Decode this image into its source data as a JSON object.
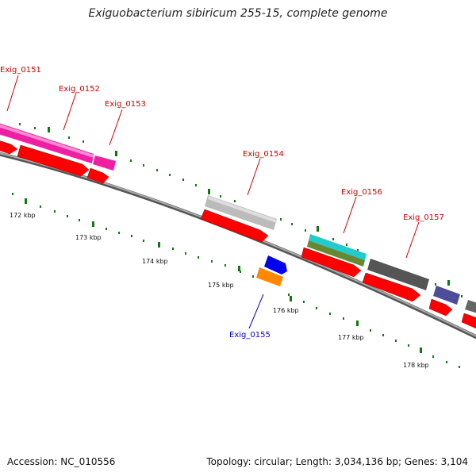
{
  "title": "Exiguobacterium sibiricum 255-15, complete genome",
  "footer": {
    "accession": "Accession: NC_010556",
    "summary": "Topology: circular; Length: 3,034,136 bp; Genes: 3,104"
  },
  "colors": {
    "cds_arrow": "#ff0000",
    "label_forward": "#cc0000",
    "label_reverse": "#0000cc",
    "tick": "#007700",
    "backbone": "#888888"
  },
  "ticks": [
    {
      "label": "172 kbp"
    },
    {
      "label": "173 kbp"
    },
    {
      "label": "174 kbp"
    },
    {
      "label": "175 kbp"
    },
    {
      "label": "176 kbp"
    },
    {
      "label": "177 kbp"
    },
    {
      "label": "178 kbp"
    }
  ],
  "genes": [
    {
      "label": "Exig_0151",
      "strand": "forward",
      "color": "#ee1fa3"
    },
    {
      "label": "Exig_0152",
      "strand": "forward",
      "color": "#ee1fa3"
    },
    {
      "label": "Exig_0153",
      "strand": "forward",
      "color": "#ee1fa3"
    },
    {
      "label": "Exig_0154",
      "strand": "forward",
      "color": "#bbbbbb"
    },
    {
      "label": "Exig_0155",
      "strand": "reverse",
      "color": "#ff8800"
    },
    {
      "label": "Exig_0156",
      "strand": "forward",
      "color": "#22cccc"
    },
    {
      "label": "Exig_0157",
      "strand": "forward",
      "color": "#555555"
    }
  ]
}
